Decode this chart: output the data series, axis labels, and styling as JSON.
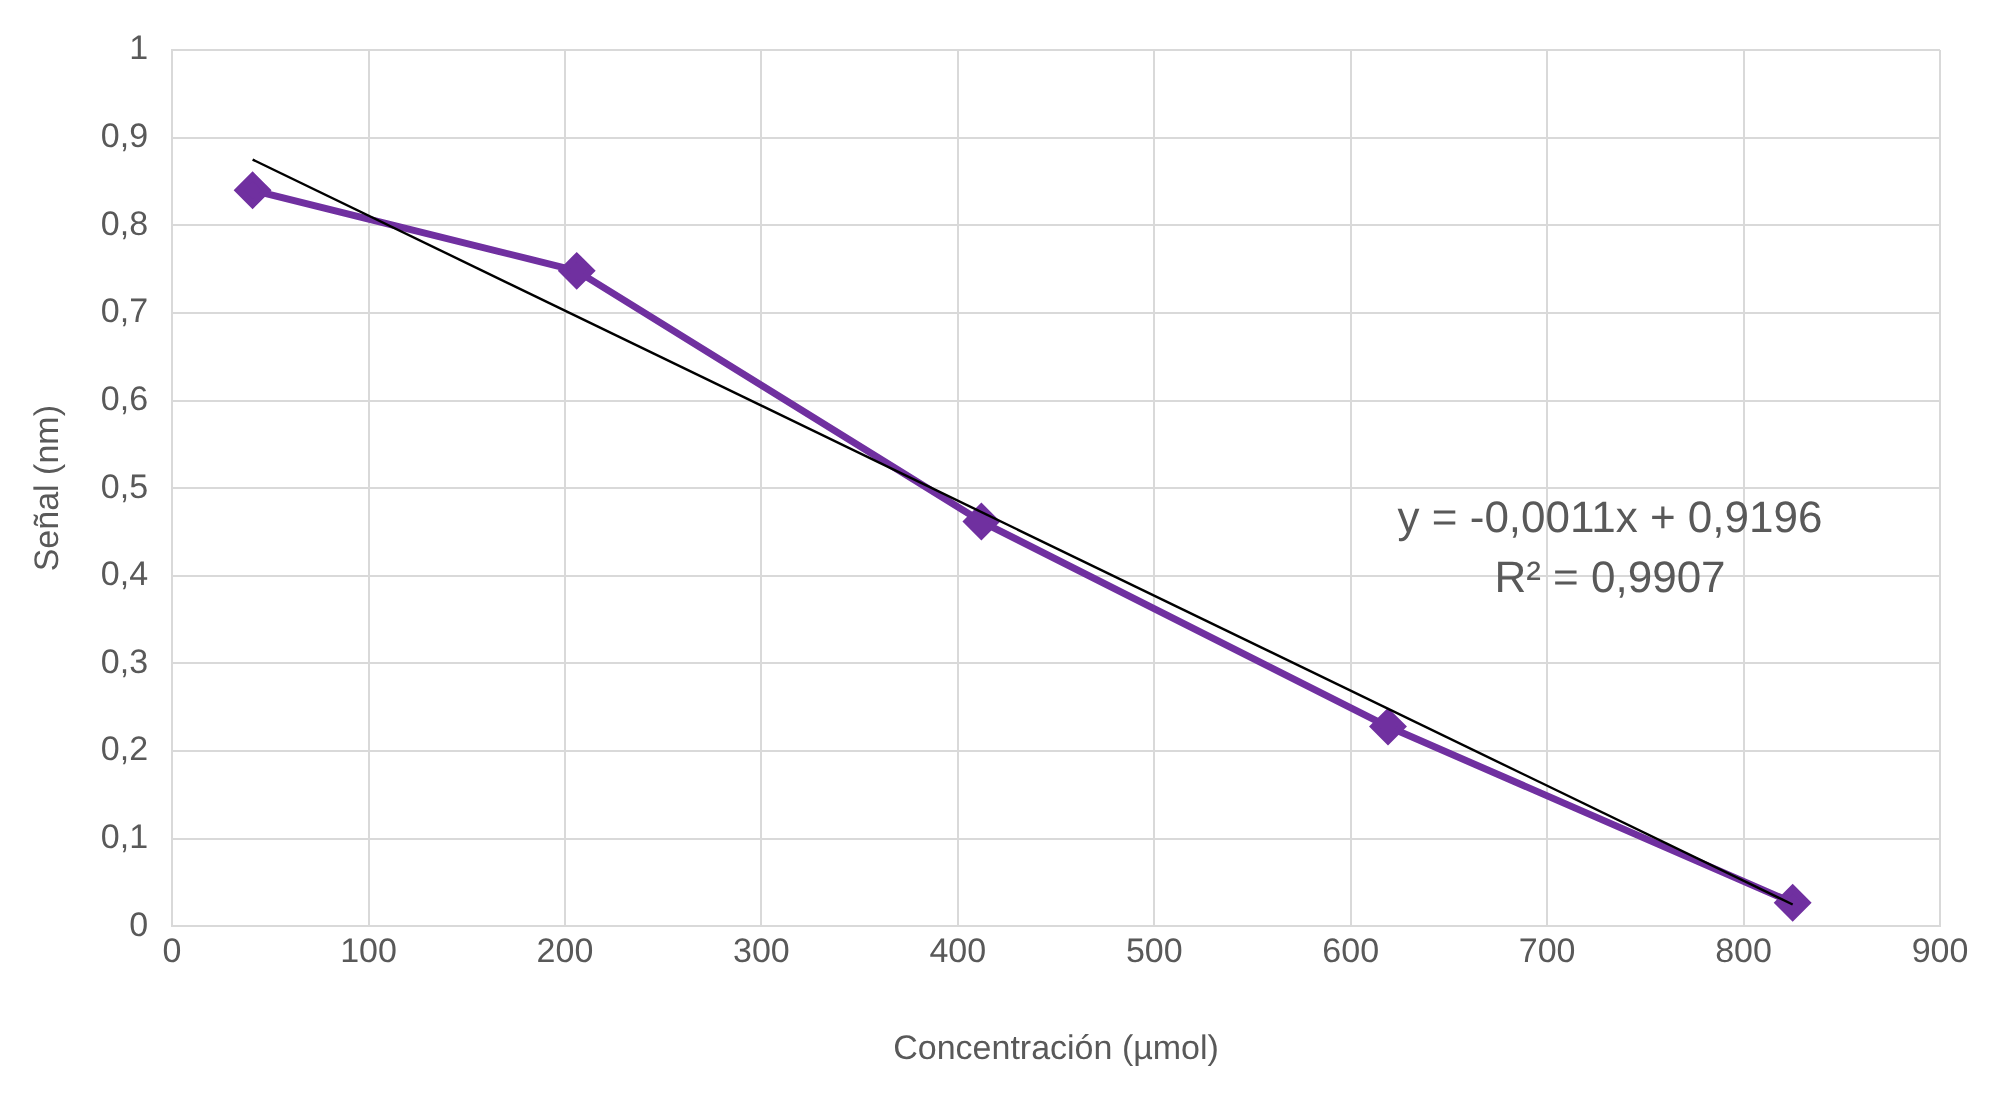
{
  "chart_data": {
    "type": "line",
    "xlabel": "Concentración (µmol)",
    "ylabel": "Señal (nm)",
    "series": [
      {
        "type": "line",
        "color": "#7030a0",
        "x": [
          41,
          206,
          412,
          619,
          825
        ],
        "values": [
          0.84,
          0.748,
          0.462,
          0.228,
          0.027
        ],
        "marker": "diamond"
      },
      {
        "type": "line",
        "color": "#000000",
        "x": [
          41,
          825
        ],
        "values": [
          0.875,
          0.025
        ],
        "marker": "none"
      }
    ],
    "xlim": [
      0,
      900
    ],
    "xticks": [
      0,
      100,
      200,
      300,
      400,
      500,
      600,
      700,
      800,
      900
    ],
    "ylim": [
      0,
      1
    ],
    "yticks": [
      0,
      {
        "value": 0.1,
        "label": "0,1"
      },
      {
        "value": 0.2,
        "label": "0,2"
      },
      {
        "value": 0.3,
        "label": "0,3"
      },
      {
        "value": 0.4,
        "label": "0,4"
      },
      {
        "value": 0.5,
        "label": "0,5"
      },
      {
        "value": 0.6,
        "label": "0,6"
      },
      {
        "value": 0.7,
        "label": "0,7"
      },
      {
        "value": 0.8,
        "label": "0,8"
      },
      {
        "value": 0.9,
        "label": "0,9"
      },
      1
    ],
    "grid": true,
    "legend": false,
    "annotations": [
      "y = -0,0011x + 0,9196",
      "R² = 0,9907"
    ]
  }
}
